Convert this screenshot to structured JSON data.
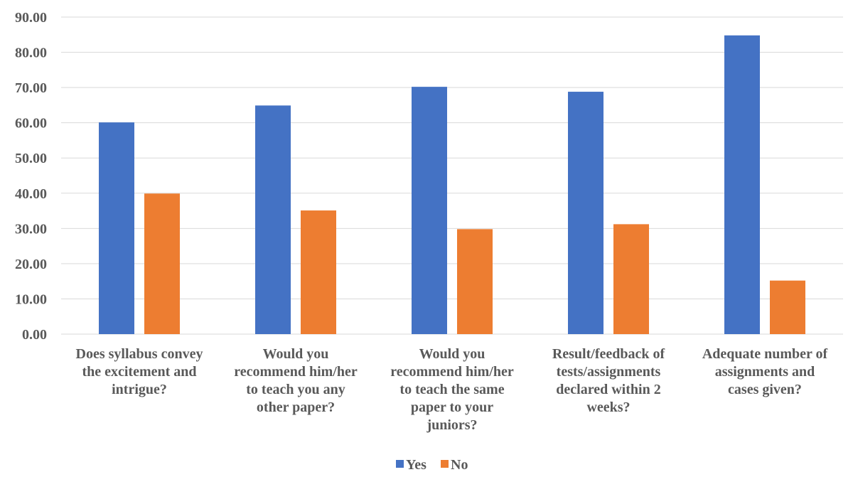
{
  "chart_data": {
    "type": "bar",
    "title": "",
    "xlabel": "",
    "ylabel": "",
    "categories": [
      "Does syllabus convey the excitement and intrigue?",
      "Would you recommend him/her to teach you any other paper?",
      "Would you recommend him/her to teach the same paper to your juniors?",
      "Result/feedback of tests/assignments declared within 2 weeks?",
      "Adequate number of assignments and cases given?"
    ],
    "category_label_lines": [
      [
        "Does syllabus convey",
        "the excitement and",
        "intrigue?"
      ],
      [
        "Would you",
        "recommend him/her",
        "to teach you any",
        "other paper?"
      ],
      [
        "Would you",
        "recommend him/her",
        "to teach the same",
        "paper to your",
        "juniors?"
      ],
      [
        "Result/feedback of",
        "tests/assignments",
        "declared within 2",
        "weeks?"
      ],
      [
        "Adequate number of",
        "assignments and",
        "cases given?"
      ]
    ],
    "series": [
      {
        "name": "Yes",
        "color": "#4472c4",
        "values": [
          60.1,
          64.9,
          70.2,
          68.8,
          84.8
        ]
      },
      {
        "name": "No",
        "color": "#ed7d31",
        "values": [
          39.9,
          35.1,
          29.8,
          31.2,
          15.2
        ]
      }
    ],
    "ylim": [
      0,
      90
    ],
    "yticks": [
      "0.00",
      "10.00",
      "20.00",
      "30.00",
      "40.00",
      "50.00",
      "60.00",
      "70.00",
      "80.00",
      "90.00"
    ],
    "grid": true,
    "legend_position": "bottom"
  }
}
